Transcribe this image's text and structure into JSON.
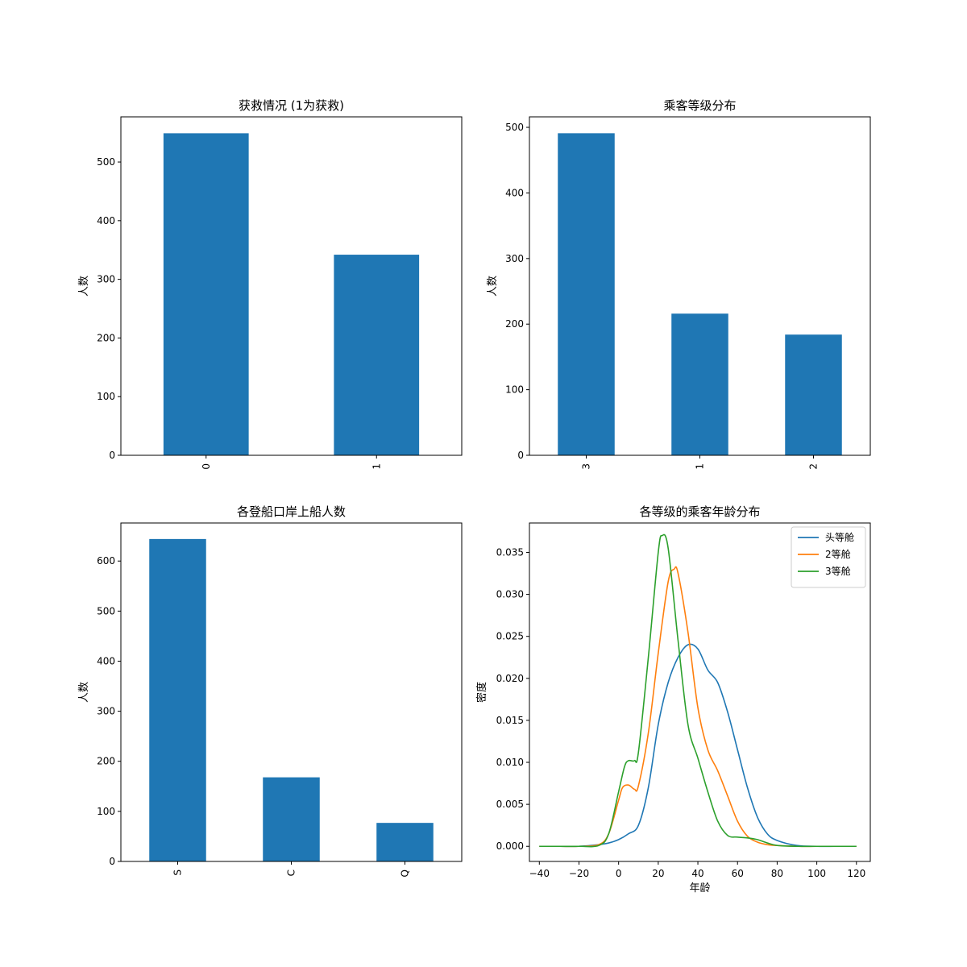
{
  "chart_data": [
    {
      "type": "bar",
      "title": "获救情况 (1为获救)",
      "xlabel": "",
      "ylabel": "人数",
      "categories": [
        "0",
        "1"
      ],
      "values": [
        549,
        342
      ],
      "ylim": [
        0,
        577
      ],
      "yticks": [
        0,
        100,
        200,
        300,
        400,
        500
      ],
      "color": "#1f77b4",
      "grid": false
    },
    {
      "type": "bar",
      "title": "乘客等级分布",
      "xlabel": "",
      "ylabel": "人数",
      "categories": [
        "3",
        "1",
        "2"
      ],
      "values": [
        491,
        216,
        184
      ],
      "ylim": [
        0,
        516
      ],
      "yticks": [
        0,
        100,
        200,
        300,
        400,
        500
      ],
      "color": "#1f77b4",
      "grid": false
    },
    {
      "type": "bar",
      "title": "各登船口岸上船人数",
      "xlabel": "",
      "ylabel": "人数",
      "categories": [
        "S",
        "C",
        "Q"
      ],
      "values": [
        644,
        168,
        77
      ],
      "ylim": [
        0,
        676
      ],
      "yticks": [
        0,
        100,
        200,
        300,
        400,
        500,
        600
      ],
      "color": "#1f77b4",
      "grid": false
    },
    {
      "type": "line",
      "title": "各等级的乘客年龄分布",
      "xlabel": "年龄",
      "ylabel": "密度",
      "xlim": [
        -45,
        127
      ],
      "ylim": [
        -0.0018,
        0.0385
      ],
      "xticks": [
        -40,
        -20,
        0,
        20,
        40,
        60,
        80,
        100,
        120
      ],
      "yticks": [
        0.0,
        0.005,
        0.01,
        0.015,
        0.02,
        0.025,
        0.03,
        0.035
      ],
      "ytick_labels": [
        "0.000",
        "0.005",
        "0.010",
        "0.015",
        "0.020",
        "0.025",
        "0.030",
        "0.035"
      ],
      "legend_position": "upper right",
      "grid": false,
      "series": [
        {
          "name": "头等舱",
          "color": "#1f77b4",
          "x": [
            -40,
            -30,
            -20,
            -10,
            -5,
            0,
            5,
            10,
            15,
            20,
            25,
            30,
            35,
            40,
            45,
            50,
            55,
            60,
            65,
            70,
            75,
            80,
            90,
            100,
            110,
            120
          ],
          "y": [
            0.0,
            0.0,
            0.0,
            0.0002,
            0.0004,
            0.0008,
            0.0015,
            0.0025,
            0.007,
            0.0145,
            0.0195,
            0.0225,
            0.024,
            0.0235,
            0.021,
            0.0195,
            0.016,
            0.0115,
            0.007,
            0.0035,
            0.0015,
            0.0007,
            0.0001,
            0.0,
            0.0,
            0.0
          ]
        },
        {
          "name": "2等舱",
          "color": "#ff7f0e",
          "x": [
            -40,
            -30,
            -20,
            -10,
            -5,
            0,
            2,
            5,
            8,
            10,
            15,
            20,
            25,
            28,
            30,
            35,
            40,
            45,
            50,
            55,
            60,
            65,
            70,
            75,
            80,
            90,
            100,
            110,
            120
          ],
          "y": [
            0.0,
            0.0,
            0.0,
            0.0002,
            0.0015,
            0.0055,
            0.007,
            0.0073,
            0.0068,
            0.0072,
            0.0135,
            0.023,
            0.0315,
            0.033,
            0.0325,
            0.0255,
            0.0165,
            0.0115,
            0.009,
            0.006,
            0.003,
            0.0012,
            0.0005,
            0.0002,
            0.0001,
            0.0,
            0.0,
            0.0,
            0.0
          ]
        },
        {
          "name": "3等舱",
          "color": "#2ca02c",
          "x": [
            -40,
            -30,
            -20,
            -10,
            -5,
            0,
            3,
            5,
            8,
            10,
            15,
            20,
            22,
            25,
            30,
            35,
            40,
            45,
            50,
            55,
            60,
            65,
            70,
            75,
            80,
            90,
            100,
            110,
            120
          ],
          "y": [
            0.0,
            0.0,
            0.0,
            0.0001,
            0.0015,
            0.0065,
            0.0095,
            0.0102,
            0.0102,
            0.0112,
            0.0225,
            0.035,
            0.037,
            0.0355,
            0.0245,
            0.0145,
            0.0105,
            0.0065,
            0.003,
            0.0013,
            0.0011,
            0.001,
            0.0008,
            0.0004,
            0.0001,
            0.0,
            0.0,
            0.0,
            0.0
          ]
        }
      ]
    }
  ]
}
